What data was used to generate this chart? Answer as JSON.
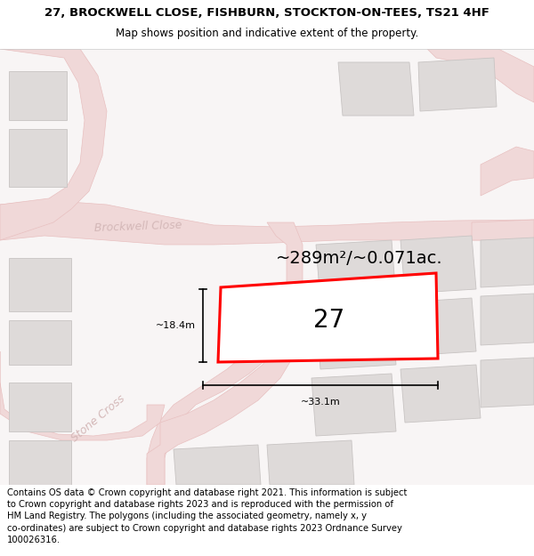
{
  "title_line1": "27, BROCKWELL CLOSE, FISHBURN, STOCKTON-ON-TEES, TS21 4HF",
  "title_line2": "Map shows position and indicative extent of the property.",
  "footer_lines": [
    "Contains OS data © Crown copyright and database right 2021. This information is subject to Crown copyright and database rights 2023 and is reproduced with the permission of",
    "HM Land Registry. The polygons (including the associated geometry, namely x, y",
    "co-ordinates) are subject to Crown copyright and database rights 2023 Ordnance Survey",
    "100026316."
  ],
  "area_label": "~289m²/~0.071ac.",
  "property_number": "27",
  "dim_width": "~33.1m",
  "dim_height": "~18.4m",
  "road_label_bc": "Brockwell Close",
  "road_label_sc1": "Stone Cross",
  "road_label_sc2": "Stone Cross",
  "bg_color": "#f8f5f5",
  "road_fill": "#f0d8d8",
  "road_stroke": "#e8c0c0",
  "bld_fill": "#dedad9",
  "bld_stroke": "#c8c4c3",
  "plot_fill": "#ffffff",
  "plot_stroke": "#ff0000",
  "white": "#ffffff",
  "black": "#000000",
  "road_text_color": "#d4b8b8",
  "title_fs": 9.5,
  "subtitle_fs": 8.5,
  "footer_fs": 7.2,
  "area_fs": 14,
  "num_fs": 20,
  "dim_fs": 8,
  "road_fs": 9
}
